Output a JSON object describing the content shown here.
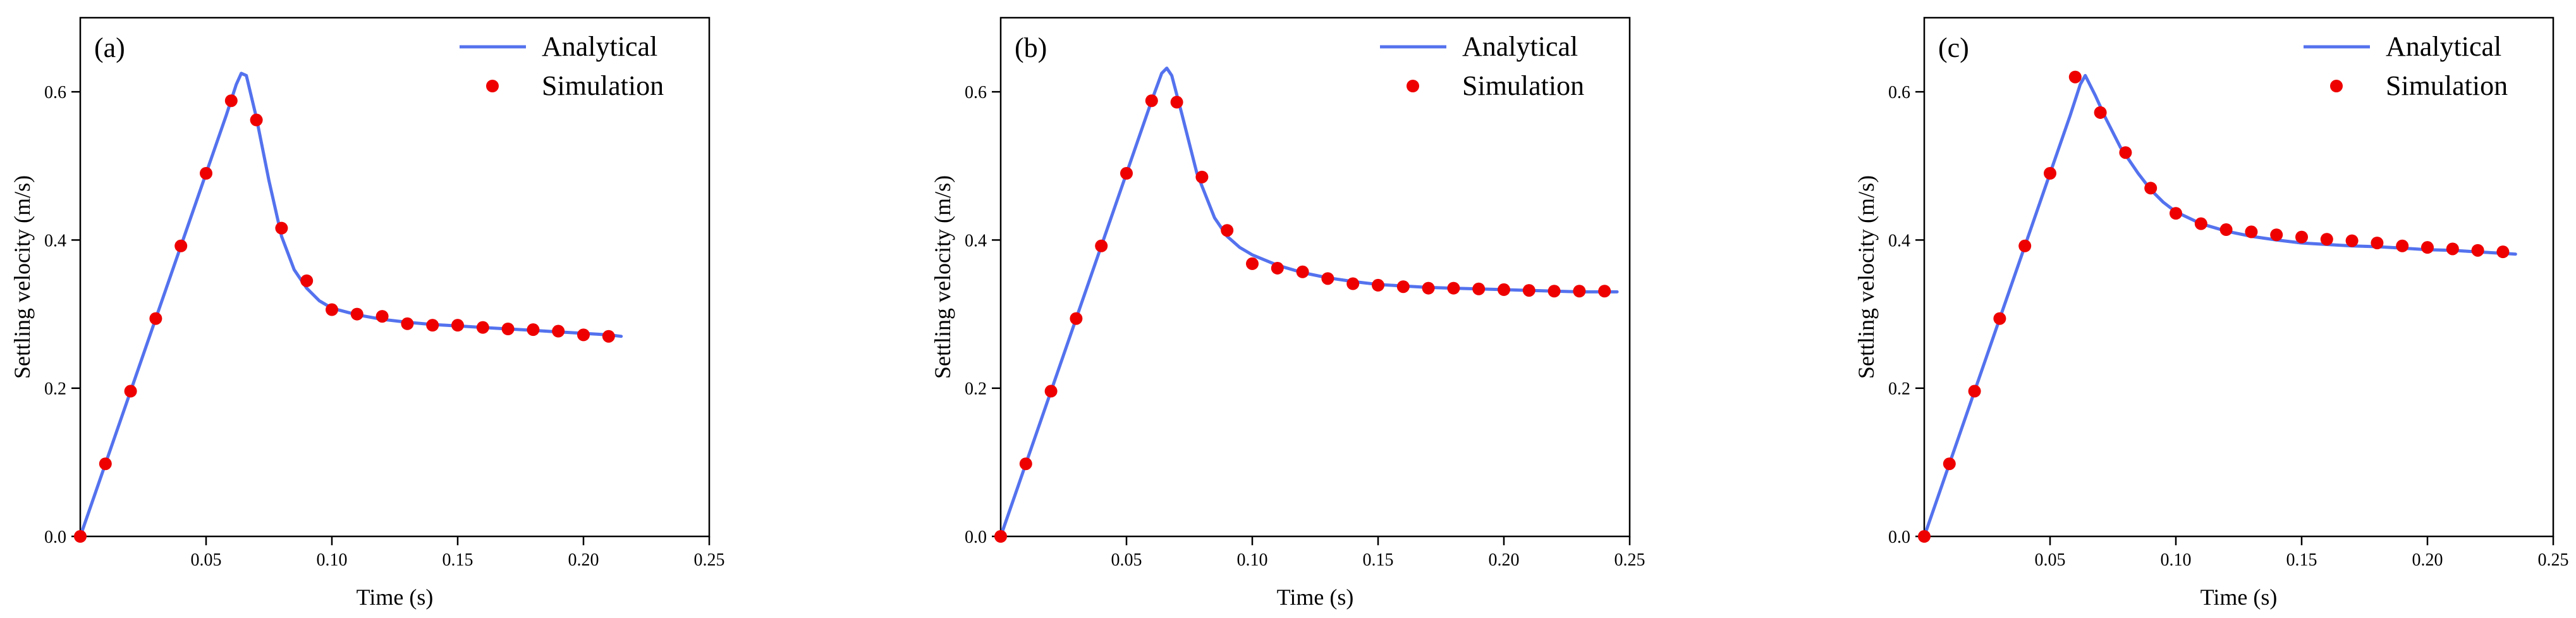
{
  "figure": {
    "colors": {
      "line": "#5472ee",
      "marker": "#ee0000",
      "axis": "#000000"
    }
  },
  "chart_data": [
    {
      "type": "line",
      "panel_label": "(a)",
      "xlabel": "Time (s)",
      "ylabel": "Settling velocity (m/s)",
      "xlim": [
        0,
        0.25
      ],
      "ylim": [
        0,
        0.7
      ],
      "xticks": [
        0.05,
        0.1,
        0.15,
        0.2,
        0.25
      ],
      "xtick_labels": [
        "0.05",
        "0.10",
        "0.15",
        "0.20",
        "0.25"
      ],
      "yticks": [
        0.0,
        0.2,
        0.4,
        0.6
      ],
      "ytick_labels": [
        "0.0",
        "0.2",
        "0.4",
        "0.6"
      ],
      "legend_position": "top-right",
      "series": [
        {
          "name": "Analytical",
          "style": "line",
          "x": [
            0,
            0.01,
            0.02,
            0.03,
            0.04,
            0.05,
            0.058,
            0.062,
            0.064,
            0.066,
            0.07,
            0.075,
            0.08,
            0.085,
            0.09,
            0.095,
            0.1,
            0.11,
            0.12,
            0.13,
            0.14,
            0.15,
            0.16,
            0.17,
            0.18,
            0.19,
            0.2,
            0.21,
            0.215
          ],
          "y": [
            0,
            0.098,
            0.196,
            0.294,
            0.392,
            0.49,
            0.568,
            0.61,
            0.625,
            0.622,
            0.565,
            0.48,
            0.405,
            0.36,
            0.335,
            0.318,
            0.308,
            0.299,
            0.293,
            0.289,
            0.286,
            0.284,
            0.282,
            0.28,
            0.278,
            0.276,
            0.274,
            0.272,
            0.27
          ]
        },
        {
          "name": "Simulation",
          "style": "markers",
          "x": [
            0,
            0.01,
            0.02,
            0.03,
            0.04,
            0.05,
            0.06,
            0.07,
            0.08,
            0.09,
            0.1,
            0.11,
            0.12,
            0.13,
            0.14,
            0.15,
            0.16,
            0.17,
            0.18,
            0.19,
            0.2,
            0.21
          ],
          "y": [
            0,
            0.098,
            0.196,
            0.294,
            0.392,
            0.49,
            0.588,
            0.562,
            0.416,
            0.345,
            0.306,
            0.3,
            0.297,
            0.287,
            0.285,
            0.285,
            0.282,
            0.28,
            0.279,
            0.277,
            0.272,
            0.27
          ]
        }
      ]
    },
    {
      "type": "line",
      "panel_label": "(b)",
      "xlabel": "Time (s)",
      "ylabel": "Settling velocity (m/s)",
      "xlim": [
        0,
        0.25
      ],
      "ylim": [
        0,
        0.7
      ],
      "xticks": [
        0.05,
        0.1,
        0.15,
        0.2,
        0.25
      ],
      "xtick_labels": [
        "0.05",
        "0.10",
        "0.15",
        "0.20",
        "0.25"
      ],
      "yticks": [
        0.0,
        0.2,
        0.4,
        0.6
      ],
      "ytick_labels": [
        "0.0",
        "0.2",
        "0.4",
        "0.6"
      ],
      "legend_position": "top-right",
      "series": [
        {
          "name": "Analytical",
          "style": "line",
          "x": [
            0,
            0.01,
            0.02,
            0.03,
            0.04,
            0.05,
            0.06,
            0.064,
            0.066,
            0.068,
            0.072,
            0.078,
            0.085,
            0.09,
            0.095,
            0.1,
            0.11,
            0.12,
            0.13,
            0.14,
            0.15,
            0.16,
            0.17,
            0.18,
            0.19,
            0.2,
            0.21,
            0.22,
            0.23,
            0.24,
            0.245
          ],
          "y": [
            0,
            0.098,
            0.196,
            0.294,
            0.392,
            0.49,
            0.588,
            0.625,
            0.632,
            0.622,
            0.57,
            0.49,
            0.43,
            0.405,
            0.39,
            0.38,
            0.366,
            0.356,
            0.349,
            0.344,
            0.34,
            0.338,
            0.336,
            0.335,
            0.334,
            0.333,
            0.332,
            0.331,
            0.33,
            0.33,
            0.33
          ]
        },
        {
          "name": "Simulation",
          "style": "markers",
          "x": [
            0,
            0.01,
            0.02,
            0.03,
            0.04,
            0.05,
            0.06,
            0.07,
            0.08,
            0.09,
            0.1,
            0.11,
            0.12,
            0.13,
            0.14,
            0.15,
            0.16,
            0.17,
            0.18,
            0.19,
            0.2,
            0.21,
            0.22,
            0.23,
            0.24
          ],
          "y": [
            0,
            0.098,
            0.196,
            0.294,
            0.392,
            0.49,
            0.588,
            0.586,
            0.485,
            0.413,
            0.368,
            0.362,
            0.357,
            0.348,
            0.341,
            0.339,
            0.337,
            0.335,
            0.335,
            0.334,
            0.333,
            0.332,
            0.331,
            0.331,
            0.331
          ]
        }
      ]
    },
    {
      "type": "line",
      "panel_label": "(c)",
      "xlabel": "Time (s)",
      "ylabel": "Settling velocity (m/s)",
      "xlim": [
        0,
        0.25
      ],
      "ylim": [
        0,
        0.7
      ],
      "xticks": [
        0.05,
        0.1,
        0.15,
        0.2,
        0.25
      ],
      "xtick_labels": [
        "0.05",
        "0.10",
        "0.15",
        "0.20",
        "0.25"
      ],
      "yticks": [
        0.0,
        0.2,
        0.4,
        0.6
      ],
      "ytick_labels": [
        "0.0",
        "0.2",
        "0.4",
        "0.6"
      ],
      "legend_position": "top-right",
      "series": [
        {
          "name": "Analytical",
          "style": "line",
          "x": [
            0,
            0.01,
            0.02,
            0.03,
            0.04,
            0.05,
            0.058,
            0.062,
            0.064,
            0.068,
            0.072,
            0.078,
            0.085,
            0.09,
            0.095,
            0.1,
            0.11,
            0.12,
            0.13,
            0.14,
            0.15,
            0.16,
            0.17,
            0.18,
            0.19,
            0.2,
            0.21,
            0.22,
            0.23,
            0.235
          ],
          "y": [
            0,
            0.098,
            0.196,
            0.294,
            0.392,
            0.49,
            0.568,
            0.61,
            0.622,
            0.595,
            0.565,
            0.525,
            0.49,
            0.468,
            0.451,
            0.438,
            0.422,
            0.412,
            0.405,
            0.4,
            0.396,
            0.394,
            0.392,
            0.391,
            0.389,
            0.387,
            0.386,
            0.384,
            0.382,
            0.381
          ]
        },
        {
          "name": "Simulation",
          "style": "markers",
          "x": [
            0,
            0.01,
            0.02,
            0.03,
            0.04,
            0.05,
            0.06,
            0.07,
            0.08,
            0.09,
            0.1,
            0.11,
            0.12,
            0.13,
            0.14,
            0.15,
            0.16,
            0.17,
            0.18,
            0.19,
            0.2,
            0.21,
            0.22,
            0.23
          ],
          "y": [
            0,
            0.098,
            0.196,
            0.294,
            0.392,
            0.49,
            0.62,
            0.572,
            0.518,
            0.47,
            0.436,
            0.422,
            0.414,
            0.411,
            0.407,
            0.404,
            0.401,
            0.399,
            0.396,
            0.392,
            0.39,
            0.388,
            0.386,
            0.384
          ]
        }
      ]
    }
  ]
}
